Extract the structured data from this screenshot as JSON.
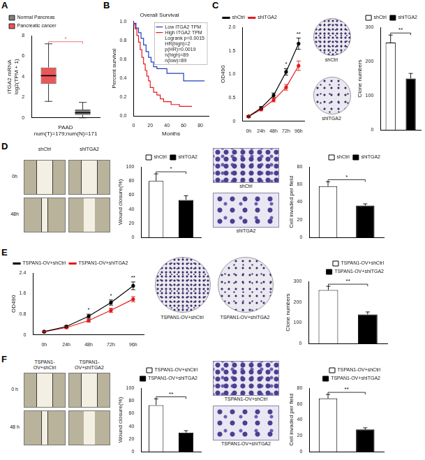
{
  "panel_labels": [
    "A",
    "B",
    "C",
    "D",
    "E",
    "F"
  ],
  "chart_data": [
    {
      "type": "boxplot",
      "x_label": [
        "PAAD",
        "num(T)=179;num(N)=171"
      ],
      "y_label": [
        "ITGA2 mRNA",
        "log2(TPM + 1)"
      ],
      "categories": [
        null,
        null
      ],
      "series": [
        {
          "name": "Normal Pancreas",
          "color": "#808080",
          "boxes": [
            null,
            {
              "min": 0.0,
              "q1": 0.3,
              "median": 0.5,
              "q3": 0.8,
              "max": 1.5
            }
          ]
        },
        {
          "name": "Pancreatic cancer",
          "color": "#e8575a",
          "boxes": [
            {
              "min": 1.6,
              "q1": 3.3,
              "median": 4.1,
              "q3": 4.9,
              "max": 7.2
            },
            null
          ]
        }
      ],
      "ylim": [
        0,
        8
      ],
      "yticks": [
        0,
        2,
        4,
        6,
        8
      ],
      "grid": false,
      "legend": "top left",
      "tick_labels": "y",
      "annotations": [
        {
          "text": "*",
          "color": "#e8575a"
        }
      ]
    },
    {
      "type": "line",
      "title": "Overall Survival",
      "x_label": "Months",
      "y_label": "Percent survival",
      "line_style": "step",
      "series": [
        {
          "name": "Low ITGA2 TPM",
          "color": "#1f3fbf",
          "x": [
            0,
            3,
            6,
            9,
            12,
            15,
            18,
            21,
            24,
            28,
            32,
            40,
            48,
            60,
            65,
            85
          ],
          "values": [
            1,
            0.98,
            0.93,
            0.88,
            0.82,
            0.75,
            0.68,
            0.62,
            0.57,
            0.52,
            0.5,
            0.5,
            0.45,
            0.45,
            0.37,
            0.37
          ]
        },
        {
          "name": "High ITGA2 TPM",
          "color": "#e41a1c",
          "x": [
            0,
            2,
            4,
            6,
            8,
            10,
            12,
            14,
            16,
            18,
            20,
            24,
            28,
            32,
            36,
            45,
            55,
            60,
            70
          ],
          "values": [
            1,
            0.97,
            0.92,
            0.85,
            0.78,
            0.7,
            0.62,
            0.55,
            0.48,
            0.42,
            0.37,
            0.3,
            0.25,
            0.22,
            0.18,
            0.15,
            0.12,
            0.1,
            0.1
          ]
        }
      ],
      "xlim": [
        0,
        90
      ],
      "xticks": [
        0,
        20,
        40,
        60,
        80
      ],
      "ylim": [
        0,
        1
      ],
      "yticks": [
        {
          "value": 0,
          "label": "0.0"
        },
        0.2,
        0.4,
        0.6,
        0.8,
        {
          "value": 1,
          "label": "1.0"
        }
      ],
      "grid": false,
      "legend": "top right",
      "annotations": [
        "Logrank p=0.0015",
        "HR(high)=2",
        "p(HR)=0.0019",
        "n(high)=89",
        "n(low)=89"
      ]
    },
    {
      "type": "line",
      "y_label": "OD490",
      "categories": [
        "0h",
        "24h",
        "48h",
        "72h",
        "96h"
      ],
      "series": [
        {
          "name": "shCtrl",
          "color": "#000000",
          "marker": "circle",
          "values": [
            0.1,
            0.28,
            0.55,
            1.05,
            1.65
          ],
          "errors": [
            0.02,
            0.03,
            0.05,
            0.07,
            0.12
          ]
        },
        {
          "name": "shITGA2",
          "color": "#e41a1c",
          "marker": "circle",
          "values": [
            0.1,
            0.25,
            0.45,
            0.72,
            1.18
          ],
          "errors": [
            0.02,
            0.03,
            0.04,
            0.06,
            0.1
          ]
        }
      ],
      "ylim": [
        0,
        2
      ],
      "yticks": [
        0,
        0.5,
        {
          "value": 1,
          "label": "1.0"
        },
        1.5,
        {
          "value": 2,
          "label": "2.0"
        }
      ],
      "grid": false,
      "legend": "top left",
      "annotations": [
        {
          "category": "72h",
          "text": "*"
        },
        {
          "category": "96h",
          "text": "**"
        }
      ]
    },
    {
      "type": "bar",
      "y_label": "Clone numbers",
      "categories": [
        null,
        null
      ],
      "series": [
        {
          "name": "shCtrl",
          "color": "#ffffff",
          "values": [
            255,
            null
          ],
          "errors": [
            22,
            null
          ]
        },
        {
          "name": "shITGA2",
          "color": "#000000",
          "values": [
            null,
            150
          ],
          "errors": [
            null,
            15
          ]
        }
      ],
      "ylim": [
        0,
        300
      ],
      "yticks": [
        0,
        100,
        200,
        300
      ],
      "grid": false,
      "legend": "top right",
      "tick_labels": "y",
      "annotations": [
        {
          "text": "**"
        }
      ]
    },
    {
      "type": "bar",
      "y_label": "Wound closure(%)",
      "categories": [
        null,
        null
      ],
      "series": [
        {
          "name": "shCtrl",
          "color": "#ffffff",
          "values": [
            80,
            null
          ],
          "errors": [
            10,
            null
          ]
        },
        {
          "name": "shITGA2",
          "color": "#000000",
          "values": [
            null,
            53
          ],
          "errors": [
            null,
            6
          ]
        }
      ],
      "ylim": [
        0,
        100
      ],
      "yticks": [
        0,
        20,
        40,
        60,
        80,
        100
      ],
      "grid": false,
      "legend": "top right",
      "tick_labels": "y",
      "annotations": [
        {
          "text": "*"
        }
      ]
    },
    {
      "type": "bar",
      "y_label": "Cell invaded per field",
      "categories": [
        null,
        null
      ],
      "series": [
        {
          "name": "shCtrl",
          "color": "#ffffff",
          "values": [
            58,
            null
          ],
          "errors": [
            5,
            null
          ]
        },
        {
          "name": "shITGA2",
          "color": "#000000",
          "values": [
            null,
            36
          ],
          "errors": [
            null,
            2
          ]
        }
      ],
      "ylim": [
        0,
        80
      ],
      "yticks": [
        0,
        20,
        40,
        60,
        80
      ],
      "grid": false,
      "legend": "top right",
      "tick_labels": "y",
      "annotations": [
        {
          "text": "*"
        }
      ]
    },
    {
      "type": "line",
      "y_label": "OD490",
      "categories": [
        "0h",
        "24h",
        "48h",
        "72h",
        "96h"
      ],
      "series": [
        {
          "name": "TSPAN1-OV+shCtrl",
          "color": "#000000",
          "marker": "circle",
          "values": [
            0.12,
            0.32,
            0.72,
            1.25,
            1.9
          ],
          "errors": [
            0.02,
            0.04,
            0.08,
            0.1,
            0.15
          ]
        },
        {
          "name": "TSPAN1-OV+shITGA2",
          "color": "#e41a1c",
          "marker": "circle",
          "values": [
            0.12,
            0.28,
            0.55,
            0.95,
            1.38
          ],
          "errors": [
            0.02,
            0.03,
            0.06,
            0.08,
            0.1
          ]
        }
      ],
      "ylim": [
        0,
        2.4
      ],
      "yticks": [
        0,
        0.8,
        1.6,
        2.4
      ],
      "grid": false,
      "legend": "top left",
      "annotations": [
        {
          "category": "48h",
          "text": "*"
        },
        {
          "category": "72h",
          "text": "*"
        },
        {
          "category": "96h",
          "text": "**"
        }
      ]
    },
    {
      "type": "bar",
      "y_label": "Clone numbers",
      "categories": [
        null,
        null
      ],
      "series": [
        {
          "name": "TSPAN1-OV+shCtrl",
          "color": "#ffffff",
          "values": [
            258,
            null
          ],
          "errors": [
            18,
            null
          ]
        },
        {
          "name": "TSPAN1-OV+shITGA2",
          "color": "#000000",
          "values": [
            null,
            140
          ],
          "errors": [
            null,
            12
          ]
        }
      ],
      "ylim": [
        0,
        300
      ],
      "yticks": [
        0,
        100,
        200,
        300
      ],
      "grid": false,
      "legend": "top right",
      "tick_labels": "y",
      "annotations": [
        {
          "text": "**"
        }
      ]
    },
    {
      "type": "bar",
      "y_label": "Wound closure(%)",
      "categories": [
        null,
        null
      ],
      "series": [
        {
          "name": "TSPAN1-OV+shCtrl",
          "color": "#ffffff",
          "values": [
            73,
            null
          ],
          "errors": [
            10,
            null
          ]
        },
        {
          "name": "TSPAN1-OV+shITGA2",
          "color": "#000000",
          "values": [
            null,
            30
          ],
          "errors": [
            null,
            3
          ]
        }
      ],
      "ylim": [
        0,
        100
      ],
      "yticks": [
        0,
        20,
        40,
        60,
        80,
        100
      ],
      "grid": false,
      "legend": "top right",
      "tick_labels": "y",
      "annotations": [
        {
          "text": "**"
        }
      ]
    },
    {
      "type": "bar",
      "y_label": "Cell invaded per field",
      "categories": [
        null,
        null
      ],
      "series": [
        {
          "name": "TSPAN1-OV+shCtrl",
          "color": "#ffffff",
          "values": [
            67,
            null
          ],
          "errors": [
            5,
            null
          ]
        },
        {
          "name": "TSPAN1-OV+shITGA2",
          "color": "#000000",
          "values": [
            null,
            28
          ],
          "errors": [
            null,
            2
          ]
        }
      ],
      "ylim": [
        0,
        80
      ],
      "yticks": [
        0,
        20,
        40,
        60,
        80
      ],
      "grid": false,
      "legend": "top right",
      "tick_labels": "y",
      "annotations": [
        {
          "text": "**"
        }
      ]
    }
  ],
  "photos": [
    {
      "labels": [
        "shCtrl",
        "shITGA2"
      ]
    },
    {
      "row_labels": [
        "0h",
        "48h"
      ],
      "column_labels": [
        "shCtrl",
        "shITGA2"
      ]
    },
    {
      "labels": [
        "shCtrl",
        "shITGA2"
      ]
    },
    {
      "labels": [
        "TSPAN1-OV+shCtrl",
        "TSPAN1-OV+shITGA2"
      ]
    },
    {
      "row_labels": [
        "0 h",
        "48 h"
      ],
      "column_labels": [
        "TSPAN1-OV+shCtrl",
        "TSPAN1-OV+shITGA2"
      ]
    },
    {
      "labels": [
        "TSPAN1-OV+shCtrl",
        "TSPAN1-OV+shITGA2"
      ]
    }
  ]
}
